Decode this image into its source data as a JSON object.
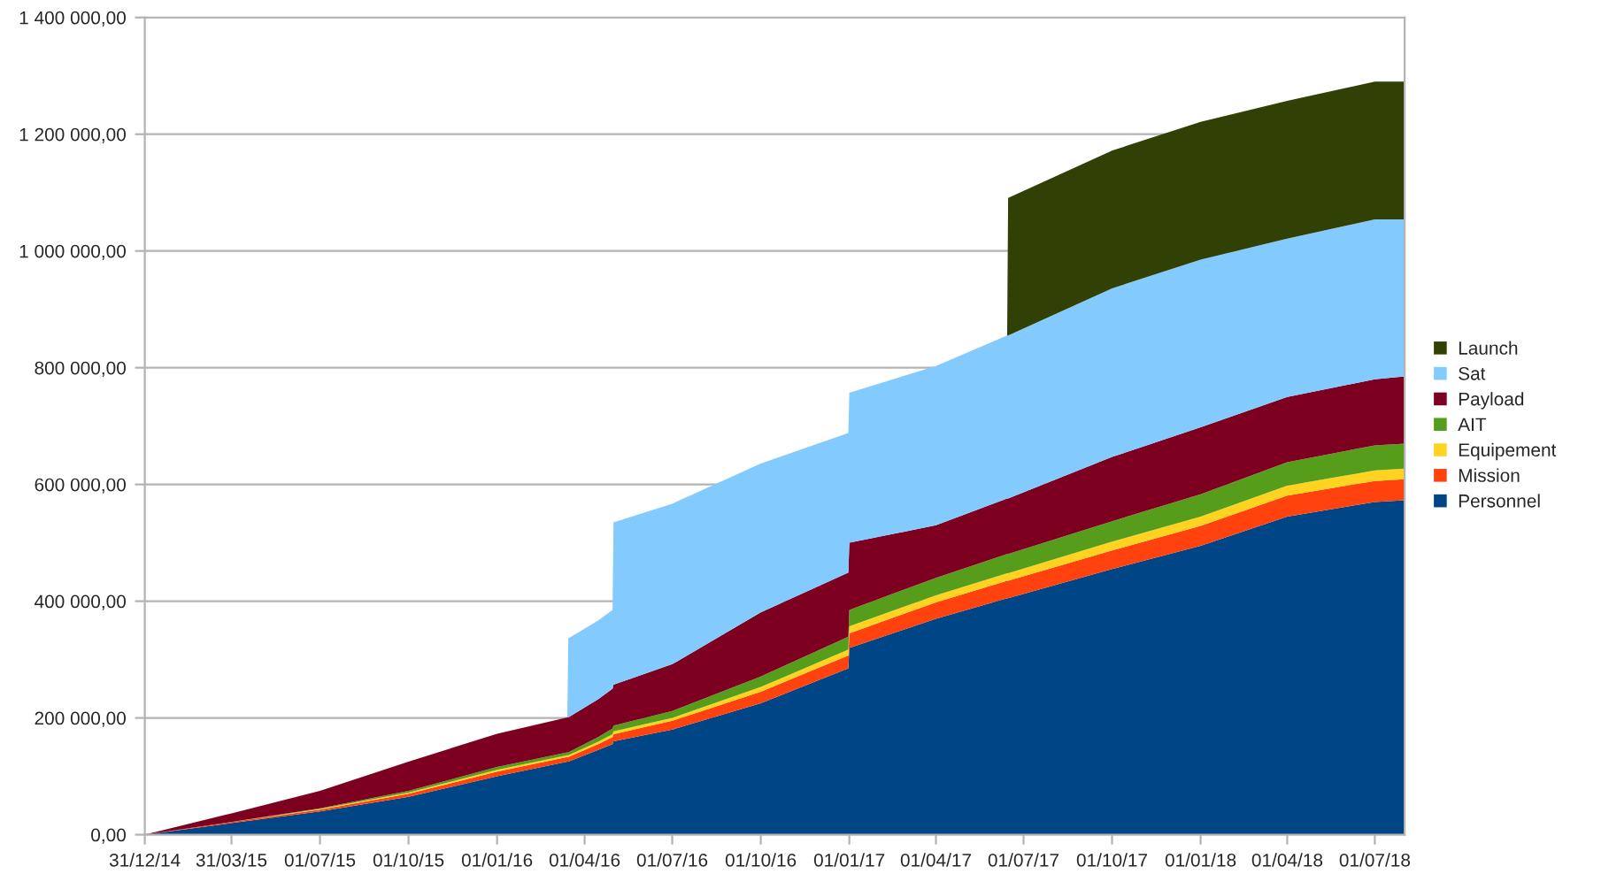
{
  "chart_data": {
    "type": "area",
    "stacked": true,
    "x": [
      "2014-12-31",
      "2015-04-01",
      "2015-07-01",
      "2015-10-01",
      "2016-01-01",
      "2016-03-14",
      "2016-03-15",
      "2016-04-15",
      "2016-04-30",
      "2016-05-01",
      "2016-07-01",
      "2016-10-01",
      "2016-12-31",
      "2017-01-01",
      "2017-04-01",
      "2017-06-14",
      "2017-06-15",
      "2017-10-01",
      "2018-01-01",
      "2018-04-01",
      "2018-07-01",
      "2018-08-01"
    ],
    "series": [
      {
        "name": "Personnel",
        "color": "#004586",
        "values": [
          0,
          20000,
          40000,
          65000,
          100000,
          125000,
          125000,
          145000,
          155000,
          160000,
          180000,
          225000,
          285000,
          320000,
          370000,
          405000,
          405000,
          455000,
          495000,
          545000,
          570000,
          573000
        ]
      },
      {
        "name": "Mission",
        "color": "#ff420e",
        "values": [
          0,
          2000,
          3000,
          5000,
          8000,
          8000,
          8000,
          10000,
          12000,
          12000,
          15000,
          20000,
          22000,
          25000,
          28000,
          30000,
          30000,
          32000,
          34000,
          36000,
          36000,
          36000
        ]
      },
      {
        "name": "Equipement",
        "color": "#ffd320",
        "values": [
          0,
          0,
          1000,
          2000,
          3000,
          3000,
          3000,
          4000,
          5000,
          5000,
          5000,
          8000,
          10000,
          12000,
          12000,
          13000,
          13000,
          15000,
          16000,
          17000,
          18000,
          18000
        ]
      },
      {
        "name": "AIT",
        "color": "#579d1c",
        "values": [
          0,
          0,
          1000,
          3000,
          5000,
          5000,
          5000,
          8000,
          10000,
          10000,
          12000,
          18000,
          22000,
          28000,
          30000,
          33000,
          33000,
          35000,
          38000,
          40000,
          43000,
          43000
        ]
      },
      {
        "name": "Payload",
        "color": "#7e0021",
        "values": [
          0,
          15000,
          30000,
          50000,
          57000,
          60000,
          60000,
          65000,
          68000,
          70000,
          80000,
          110000,
          110000,
          115000,
          90000,
          95000,
          95000,
          110000,
          115000,
          112000,
          113000,
          115000
        ]
      },
      {
        "name": "Sat",
        "color": "#83caff",
        "values": [
          0,
          0,
          0,
          0,
          0,
          0,
          135000,
          135000,
          135000,
          278000,
          275000,
          255000,
          239000,
          257000,
          273000,
          279000,
          279000,
          289000,
          287000,
          271000,
          274000,
          269000
        ]
      },
      {
        "name": "Launch",
        "color": "#314004",
        "values": [
          0,
          0,
          0,
          0,
          0,
          0,
          0,
          0,
          0,
          0,
          0,
          0,
          0,
          0,
          0,
          0,
          236000,
          236000,
          236000,
          236000,
          236000,
          236000
        ]
      }
    ],
    "xlim": [
      "2014-12-31",
      "2018-08-01"
    ],
    "xticks": [
      {
        "value": "2014-12-31",
        "label": "31/12/14"
      },
      {
        "value": "2015-03-31",
        "label": "31/03/15"
      },
      {
        "value": "2015-07-01",
        "label": "01/07/15"
      },
      {
        "value": "2015-10-01",
        "label": "01/10/15"
      },
      {
        "value": "2016-01-01",
        "label": "01/01/16"
      },
      {
        "value": "2016-04-01",
        "label": "01/04/16"
      },
      {
        "value": "2016-07-01",
        "label": "01/07/16"
      },
      {
        "value": "2016-10-01",
        "label": "01/10/16"
      },
      {
        "value": "2017-01-01",
        "label": "01/01/17"
      },
      {
        "value": "2017-04-01",
        "label": "01/04/17"
      },
      {
        "value": "2017-07-01",
        "label": "01/07/17"
      },
      {
        "value": "2017-10-01",
        "label": "01/10/17"
      },
      {
        "value": "2018-01-01",
        "label": "01/01/18"
      },
      {
        "value": "2018-04-01",
        "label": "01/04/18"
      },
      {
        "value": "2018-07-01",
        "label": "01/07/18"
      }
    ],
    "ylim": [
      0,
      1400000
    ],
    "yticks": [
      {
        "value": 0,
        "label": "0,00"
      },
      {
        "value": 200000,
        "label": "200 000,00"
      },
      {
        "value": 400000,
        "label": "400 000,00"
      },
      {
        "value": 600000,
        "label": "600 000,00"
      },
      {
        "value": 800000,
        "label": "800 000,00"
      },
      {
        "value": 1000000,
        "label": "1 000 000,00"
      },
      {
        "value": 1200000,
        "label": "1 200 000,00"
      },
      {
        "value": 1400000,
        "label": "1 400 000,00"
      }
    ],
    "grid": "y",
    "legend": "right"
  }
}
